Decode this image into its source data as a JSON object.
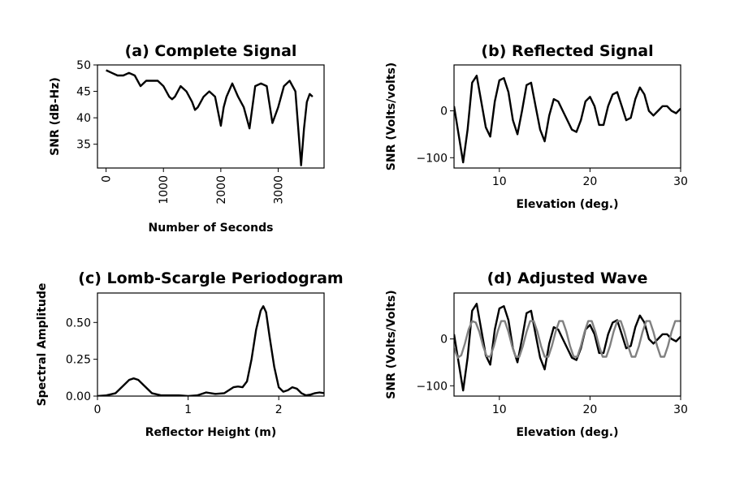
{
  "chart_data": [
    {
      "type": "line",
      "title": "(a) Complete Signal",
      "xlabel": "Number of Seconds",
      "ylabel": "SNR (dB-Hz)",
      "xlim": [
        -150,
        3800
      ],
      "ylim": [
        30.5,
        50
      ],
      "xticks": [
        0,
        1000,
        2000,
        3000
      ],
      "yticks": [
        35,
        40,
        45,
        50
      ],
      "xtick_rotation": 90,
      "series": [
        {
          "color": "#000000",
          "x": [
            0,
            100,
            200,
            300,
            400,
            500,
            600,
            700,
            800,
            900,
            1000,
            1100,
            1150,
            1200,
            1300,
            1400,
            1500,
            1550,
            1600,
            1700,
            1800,
            1900,
            2000,
            2050,
            2100,
            2200,
            2300,
            2400,
            2500,
            2600,
            2700,
            2800,
            2900,
            3000,
            3100,
            3200,
            3300,
            3400,
            3450,
            3500,
            3550,
            3600
          ],
          "y": [
            49,
            48.5,
            48,
            48,
            48.5,
            48,
            46,
            47,
            47,
            47,
            46,
            44,
            43.5,
            44,
            46,
            45,
            43,
            41.5,
            42,
            44,
            45,
            44,
            38.5,
            42,
            44,
            46.5,
            44,
            42,
            38,
            46,
            46.5,
            46,
            39,
            42,
            46,
            47,
            45,
            31,
            38,
            43,
            44.5,
            44
          ]
        }
      ]
    },
    {
      "type": "line",
      "title": "(b) Reflected Signal",
      "xlabel": "Elevation (deg.)",
      "ylabel": "SNR (Volts/volts)",
      "xlim": [
        5,
        30
      ],
      "ylim": [
        -122,
        98
      ],
      "xticks": [
        10,
        20,
        30
      ],
      "yticks": [
        -100,
        0
      ],
      "series": [
        {
          "color": "#000000",
          "x": [
            5,
            5.5,
            6,
            6.5,
            7,
            7.5,
            8,
            8.5,
            9,
            9.5,
            10,
            10.5,
            11,
            11.5,
            12,
            12.5,
            13,
            13.5,
            14,
            14.5,
            15,
            15.5,
            16,
            16.5,
            17,
            17.5,
            18,
            18.5,
            19,
            19.5,
            20,
            20.5,
            21,
            21.5,
            22,
            22.5,
            23,
            23.5,
            24,
            24.5,
            25,
            25.5,
            26,
            26.5,
            27,
            27.5,
            28,
            28.5,
            29,
            29.5,
            30
          ],
          "y": [
            10,
            -50,
            -110,
            -40,
            60,
            75,
            20,
            -35,
            -55,
            20,
            65,
            70,
            40,
            -20,
            -50,
            0,
            55,
            60,
            10,
            -40,
            -65,
            -10,
            25,
            20,
            0,
            -20,
            -40,
            -45,
            -20,
            20,
            30,
            10,
            -30,
            -30,
            10,
            35,
            40,
            10,
            -20,
            -15,
            25,
            50,
            35,
            0,
            -10,
            0,
            10,
            10,
            0,
            -5,
            5
          ]
        }
      ]
    },
    {
      "type": "line",
      "title": "(c) Lomb-Scargle Periodogram",
      "xlabel": "Reflector Height (m)",
      "ylabel": "Spectral Amplitude",
      "xlim": [
        0,
        2.5
      ],
      "ylim": [
        0,
        0.7
      ],
      "xticks": [
        0,
        1,
        2
      ],
      "yticks": [
        0.0,
        0.25,
        0.5
      ],
      "ytick_labels": [
        "0.00",
        "0.25",
        "0.50"
      ],
      "series": [
        {
          "color": "#000000",
          "x": [
            0,
            0.1,
            0.2,
            0.3,
            0.35,
            0.4,
            0.45,
            0.5,
            0.6,
            0.7,
            0.8,
            0.9,
            1.0,
            1.1,
            1.2,
            1.3,
            1.4,
            1.5,
            1.55,
            1.6,
            1.65,
            1.7,
            1.75,
            1.8,
            1.83,
            1.86,
            1.9,
            1.95,
            2.0,
            2.05,
            2.1,
            2.15,
            2.2,
            2.25,
            2.3,
            2.35,
            2.4,
            2.45,
            2.5
          ],
          "y": [
            0,
            0.005,
            0.02,
            0.08,
            0.11,
            0.12,
            0.11,
            0.08,
            0.02,
            0.005,
            0.005,
            0.005,
            0,
            0.005,
            0.025,
            0.015,
            0.02,
            0.06,
            0.065,
            0.06,
            0.1,
            0.25,
            0.45,
            0.58,
            0.61,
            0.57,
            0.4,
            0.2,
            0.06,
            0.03,
            0.04,
            0.06,
            0.05,
            0.02,
            0.005,
            0.01,
            0.02,
            0.025,
            0.02
          ]
        }
      ]
    },
    {
      "type": "line",
      "title": "(d) Adjusted Wave",
      "xlabel": "Elevation (deg.)",
      "ylabel": "SNR (Volts/Volts)",
      "xlim": [
        5,
        30
      ],
      "ylim": [
        -122,
        98
      ],
      "xticks": [
        10,
        20,
        30
      ],
      "yticks": [
        -100,
        0
      ],
      "series": [
        {
          "color": "#000000",
          "x": [
            5,
            5.5,
            6,
            6.5,
            7,
            7.5,
            8,
            8.5,
            9,
            9.5,
            10,
            10.5,
            11,
            11.5,
            12,
            12.5,
            13,
            13.5,
            14,
            14.5,
            15,
            15.5,
            16,
            16.5,
            17,
            17.5,
            18,
            18.5,
            19,
            19.5,
            20,
            20.5,
            21,
            21.5,
            22,
            22.5,
            23,
            23.5,
            24,
            24.5,
            25,
            25.5,
            26,
            26.5,
            27,
            27.5,
            28,
            28.5,
            29,
            29.5,
            30
          ],
          "y": [
            10,
            -50,
            -110,
            -40,
            60,
            75,
            20,
            -35,
            -55,
            20,
            65,
            70,
            40,
            -20,
            -50,
            0,
            55,
            60,
            10,
            -40,
            -65,
            -10,
            25,
            20,
            0,
            -20,
            -40,
            -45,
            -20,
            20,
            30,
            10,
            -30,
            -30,
            10,
            35,
            40,
            10,
            -20,
            -15,
            25,
            50,
            35,
            0,
            -10,
            0,
            10,
            10,
            0,
            -5,
            5
          ]
        },
        {
          "color": "#808080",
          "x": [
            5,
            5.4,
            5.8,
            6.2,
            6.6,
            7.0,
            7.4,
            7.8,
            8.2,
            8.6,
            9.0,
            9.4,
            9.8,
            10.2,
            10.6,
            11.0,
            11.4,
            11.8,
            12.2,
            12.6,
            13.0,
            13.4,
            13.8,
            14.2,
            14.6,
            15.0,
            15.4,
            15.8,
            16.2,
            16.6,
            17.0,
            17.4,
            17.8,
            18.2,
            18.6,
            19.0,
            19.4,
            19.8,
            20.2,
            20.6,
            21.0,
            21.4,
            21.8,
            22.2,
            22.6,
            23.0,
            23.4,
            23.8,
            24.2,
            24.6,
            25.0,
            25.4,
            25.8,
            26.2,
            26.6,
            27.0,
            27.4,
            27.8,
            28.2,
            28.6,
            29.0,
            29.4,
            29.8,
            30
          ],
          "y": [
            -20,
            -40,
            -35,
            -10,
            20,
            38,
            35,
            15,
            -15,
            -37,
            -38,
            -15,
            15,
            38,
            38,
            15,
            -15,
            -38,
            -38,
            -15,
            15,
            38,
            38,
            15,
            -15,
            -38,
            -38,
            -15,
            15,
            38,
            38,
            15,
            -15,
            -38,
            -38,
            -15,
            15,
            38,
            38,
            15,
            -15,
            -38,
            -38,
            -15,
            15,
            38,
            38,
            15,
            -15,
            -38,
            -38,
            -15,
            15,
            38,
            38,
            15,
            -15,
            -38,
            -38,
            -15,
            15,
            38,
            38,
            38
          ]
        }
      ]
    }
  ]
}
